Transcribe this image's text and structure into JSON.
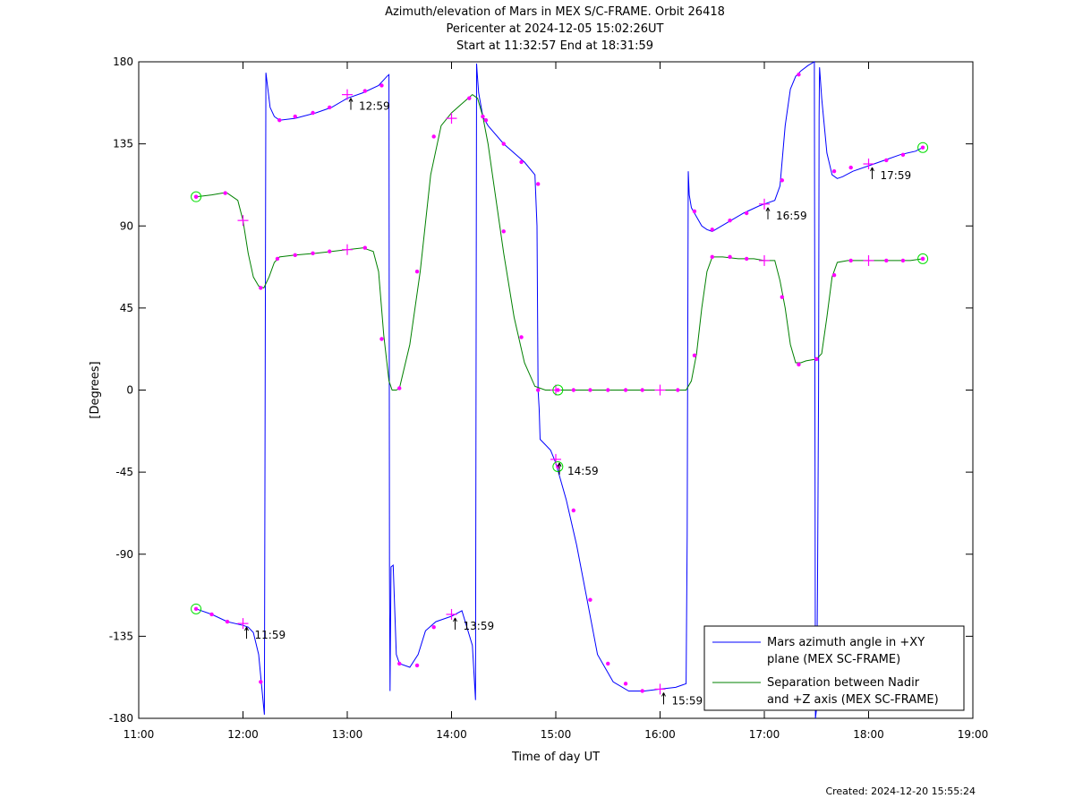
{
  "chart_data": {
    "type": "line",
    "title_lines": [
      "Azimuth/elevation of Mars in MEX S/C-FRAME.  Orbit 26418",
      "Pericenter at 2024-12-05 15:02:26UT",
      "Start at 11:32:57 End at 18:31:59"
    ],
    "xlabel": "Time of day UT",
    "ylabel": "[Degrees]",
    "xlim": [
      11.0,
      19.0
    ],
    "ylim": [
      -180,
      180
    ],
    "x_ticks": [
      {
        "v": 11,
        "label": "11:00"
      },
      {
        "v": 12,
        "label": "12:00"
      },
      {
        "v": 13,
        "label": "13:00"
      },
      {
        "v": 14,
        "label": "14:00"
      },
      {
        "v": 15,
        "label": "15:00"
      },
      {
        "v": 16,
        "label": "16:00"
      },
      {
        "v": 17,
        "label": "17:00"
      },
      {
        "v": 18,
        "label": "18:00"
      },
      {
        "v": 19,
        "label": "19:00"
      }
    ],
    "y_ticks": [
      {
        "v": 180,
        "label": "180"
      },
      {
        "v": 135,
        "label": "135"
      },
      {
        "v": 90,
        "label": "90"
      },
      {
        "v": 45,
        "label": "45"
      },
      {
        "v": 0,
        "label": "0"
      },
      {
        "v": -45,
        "label": "-45"
      },
      {
        "v": -90,
        "label": "-90"
      },
      {
        "v": -135,
        "label": "-135"
      },
      {
        "v": -180,
        "label": "-180"
      }
    ],
    "grid": false,
    "legend_position": "bottom-right",
    "series": [
      {
        "name": "Mars azimuth angle in +XY plane (MEX SC-FRAME)",
        "legend_lines": [
          "Mars azimuth angle in +XY",
          "plane (MEX SC-FRAME)"
        ],
        "color": "#0000ff",
        "x": [
          11.55,
          11.7,
          11.85,
          12.0,
          12.05,
          12.1,
          12.15,
          12.2,
          12.205,
          12.22,
          12.26,
          12.3,
          12.35,
          12.5,
          12.7,
          12.85,
          13.0,
          13.15,
          13.3,
          13.38,
          13.4,
          13.405,
          13.41,
          13.42,
          13.44,
          13.47,
          13.5,
          13.6,
          13.68,
          13.75,
          13.85,
          14.0,
          14.1,
          14.2,
          14.23,
          14.24,
          14.245,
          14.26,
          14.3,
          14.35,
          14.5,
          14.7,
          14.8,
          14.82,
          14.83,
          14.84,
          14.85,
          14.9,
          14.95,
          15.0,
          15.1,
          15.2,
          15.3,
          15.4,
          15.55,
          15.7,
          15.85,
          16.0,
          16.15,
          16.25,
          16.26,
          16.27,
          16.28,
          16.3,
          16.35,
          16.4,
          16.45,
          16.5,
          16.65,
          16.8,
          16.95,
          17.0,
          17.1,
          17.15,
          17.2,
          17.25,
          17.3,
          17.35,
          17.42,
          17.48,
          17.49,
          17.5,
          17.51,
          17.52,
          17.525,
          17.53,
          17.55,
          17.6,
          17.65,
          17.7,
          17.75,
          17.85,
          18.0,
          18.15,
          18.3,
          18.45,
          18.52
        ],
        "y": [
          -120,
          -123,
          -127,
          -129,
          -130,
          -133,
          -145,
          -175,
          -178,
          174,
          155,
          150,
          148,
          149,
          152,
          155,
          160,
          163,
          167,
          172,
          173,
          -100,
          -165,
          -97,
          -96,
          -145,
          -150,
          -152,
          -145,
          -132,
          -127,
          -124,
          -121,
          -140,
          -170,
          179,
          175,
          163,
          150,
          145,
          135,
          125,
          118,
          90,
          0,
          -10,
          -27,
          -30,
          -33,
          -40,
          -60,
          -85,
          -115,
          -145,
          -160,
          -165,
          -165,
          -164,
          -163,
          -161,
          -80,
          120,
          107,
          100,
          95,
          90,
          88,
          87,
          92,
          97,
          101,
          102,
          104,
          112,
          145,
          165,
          172,
          175,
          178,
          180,
          -180,
          -175,
          -110,
          0,
          150,
          177,
          160,
          130,
          118,
          116,
          117,
          120,
          123,
          126,
          129,
          131,
          133
        ]
      },
      {
        "name": "Separation between Nadir and +Z axis (MEX SC-FRAME)",
        "legend_lines": [
          "Separation between Nadir",
          "and +Z axis (MEX SC-FRAME)"
        ],
        "color": "#008000",
        "x": [
          11.55,
          11.7,
          11.8,
          11.85,
          11.95,
          12.0,
          12.05,
          12.1,
          12.15,
          12.2,
          12.25,
          12.3,
          12.35,
          12.5,
          12.7,
          12.85,
          13.0,
          13.15,
          13.25,
          13.3,
          13.35,
          13.4,
          13.43,
          13.47,
          13.5,
          13.6,
          13.7,
          13.8,
          13.9,
          14.0,
          14.1,
          14.2,
          14.25,
          14.3,
          14.35,
          14.4,
          14.5,
          14.6,
          14.7,
          14.8,
          14.9,
          15.0,
          15.5,
          16.0,
          16.25,
          16.3,
          16.35,
          16.4,
          16.45,
          16.5,
          16.6,
          16.75,
          16.9,
          17.0,
          17.1,
          17.15,
          17.2,
          17.25,
          17.3,
          17.35,
          17.4,
          17.5,
          17.55,
          17.6,
          17.65,
          17.7,
          17.8,
          18.0,
          18.2,
          18.4,
          18.52
        ],
        "y": [
          106,
          107,
          108,
          108,
          104,
          93,
          75,
          62,
          57,
          56,
          62,
          70,
          73,
          74,
          75,
          76,
          77,
          78,
          76,
          65,
          30,
          5,
          0,
          0,
          1,
          25,
          65,
          118,
          145,
          152,
          157,
          162,
          160,
          150,
          135,
          115,
          75,
          40,
          15,
          2,
          0,
          0,
          0,
          0,
          0,
          5,
          20,
          45,
          65,
          73,
          73,
          72,
          72,
          71,
          71,
          60,
          45,
          25,
          15,
          15,
          16,
          17,
          20,
          40,
          62,
          70,
          71,
          71,
          71,
          71,
          72
        ]
      }
    ],
    "markers": {
      "color": "#ff00ff",
      "azimuth_dots": [
        [
          11.7,
          -123
        ],
        [
          11.85,
          -127
        ],
        [
          12.17,
          -160
        ],
        [
          12.35,
          148
        ],
        [
          12.5,
          150
        ],
        [
          12.67,
          152
        ],
        [
          12.83,
          155
        ],
        [
          13.17,
          164
        ],
        [
          13.33,
          167
        ],
        [
          13.5,
          -150
        ],
        [
          13.67,
          -151
        ],
        [
          13.83,
          -130
        ],
        [
          14.3,
          150
        ],
        [
          14.5,
          135
        ],
        [
          14.67,
          125
        ],
        [
          14.83,
          113
        ],
        [
          15.17,
          -66
        ],
        [
          15.33,
          -115
        ],
        [
          15.5,
          -150
        ],
        [
          15.67,
          -161
        ],
        [
          15.83,
          -165
        ],
        [
          16.33,
          98
        ],
        [
          16.5,
          88
        ],
        [
          16.67,
          93
        ],
        [
          16.83,
          97
        ],
        [
          17.17,
          115
        ],
        [
          17.33,
          173
        ],
        [
          17.67,
          120
        ],
        [
          17.83,
          122
        ],
        [
          18.17,
          126
        ],
        [
          18.33,
          129
        ]
      ],
      "elevation_dots": [
        [
          11.55,
          106
        ],
        [
          11.83,
          108
        ],
        [
          12.17,
          56
        ],
        [
          12.33,
          72
        ],
        [
          12.5,
          74
        ],
        [
          12.67,
          75
        ],
        [
          12.83,
          76
        ],
        [
          13.17,
          78
        ],
        [
          13.33,
          28
        ],
        [
          13.5,
          1
        ],
        [
          13.67,
          65
        ],
        [
          13.83,
          139
        ],
        [
          14.17,
          160
        ],
        [
          14.33,
          148
        ],
        [
          14.5,
          87
        ],
        [
          14.67,
          29
        ],
        [
          14.83,
          0
        ],
        [
          15.17,
          0
        ],
        [
          15.33,
          0
        ],
        [
          15.5,
          0
        ],
        [
          15.67,
          0
        ],
        [
          15.83,
          0
        ],
        [
          16.17,
          0
        ],
        [
          16.33,
          19
        ],
        [
          16.5,
          73
        ],
        [
          16.67,
          73
        ],
        [
          16.83,
          72
        ],
        [
          17.17,
          51
        ],
        [
          17.33,
          14
        ],
        [
          17.5,
          17
        ],
        [
          17.67,
          63
        ],
        [
          17.83,
          71
        ],
        [
          18.17,
          71
        ],
        [
          18.33,
          71
        ],
        [
          18.52,
          72
        ]
      ],
      "hour_crosses": [
        [
          12.0,
          -128
        ],
        [
          13.0,
          162
        ],
        [
          14.0,
          -123
        ],
        [
          15.0,
          -38
        ],
        [
          16.0,
          -164
        ],
        [
          17.0,
          102
        ],
        [
          18.0,
          124
        ],
        [
          12.0,
          93
        ],
        [
          13.0,
          77
        ],
        [
          14.0,
          149
        ],
        [
          15.0,
          0
        ],
        [
          16.0,
          0
        ],
        [
          17.0,
          71
        ],
        [
          18.0,
          71
        ]
      ],
      "circles": [
        [
          11.55,
          106
        ],
        [
          11.55,
          -120
        ],
        [
          15.02,
          -42
        ],
        [
          15.02,
          0
        ],
        [
          18.52,
          133
        ],
        [
          18.52,
          72
        ]
      ]
    },
    "annotations": [
      {
        "x": 12.0,
        "y": -128,
        "label": "11:59"
      },
      {
        "x": 13.0,
        "y": 162,
        "label": "12:59"
      },
      {
        "x": 14.0,
        "y": -123,
        "label": "13:59"
      },
      {
        "x": 15.0,
        "y": -38,
        "label": "14:59"
      },
      {
        "x": 16.0,
        "y": -164,
        "label": "15:59"
      },
      {
        "x": 17.0,
        "y": 102,
        "label": "16:59"
      },
      {
        "x": 18.0,
        "y": 124,
        "label": "17:59"
      }
    ]
  },
  "footer": {
    "created": "Created: 2024-12-20 15:55:24"
  }
}
